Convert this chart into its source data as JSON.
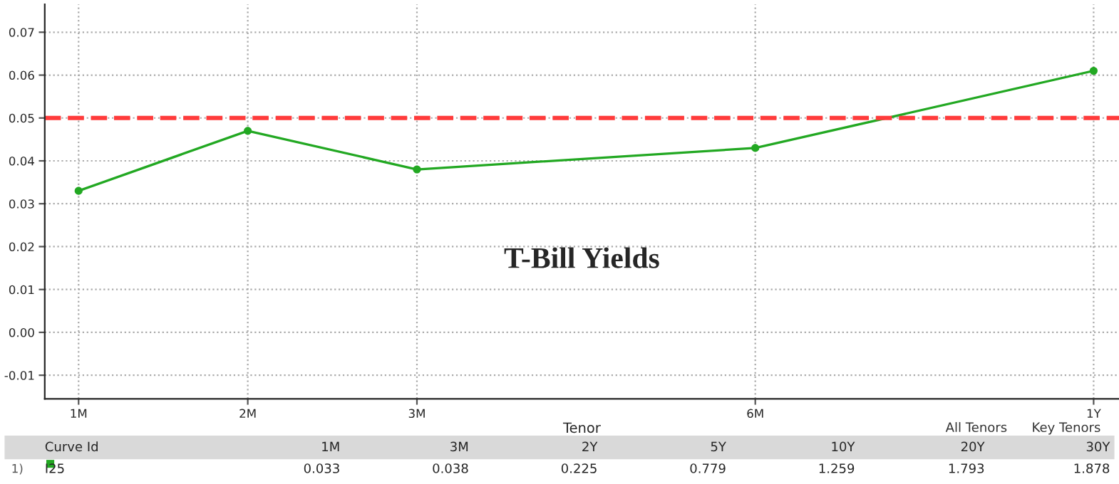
{
  "chart_data": {
    "type": "line",
    "xlabel": "Tenor",
    "categories": [
      "1M",
      "2M",
      "3M",
      null,
      "6M",
      null,
      "1Y"
    ],
    "series": [
      {
        "color": "#22a822",
        "values": [
          0.033,
          0.047,
          0.038,
          null,
          0.043,
          null,
          0.061
        ]
      }
    ],
    "ylim": [
      -0.0155,
      0.0765
    ],
    "yticks": [
      {
        "value": -0.01,
        "label": "-0.01"
      },
      {
        "value": 0,
        "label": "0.00"
      },
      {
        "value": 0.01,
        "label": "0.01"
      },
      {
        "value": 0.02,
        "label": "0.02"
      },
      {
        "value": 0.03,
        "label": "0.03"
      },
      {
        "value": 0.04,
        "label": "0.04"
      },
      {
        "value": 0.05,
        "label": "0.05"
      },
      {
        "value": 0.06,
        "label": "0.06"
      },
      {
        "value": 0.07,
        "label": "0.07"
      }
    ],
    "ref_lines": [
      {
        "axis": "y",
        "value": 0.05,
        "color": "#ff3b3b",
        "line_style": "dashed"
      }
    ],
    "grid": true,
    "marker": "circle",
    "line_style": "solid",
    "legend": false,
    "annotations": [
      "T-Bill Yields",
      "All Tenors",
      "Key Tenors",
      "Curve Id",
      "1M",
      "3M",
      "2Y",
      "5Y",
      "10Y",
      "20Y",
      "30Y",
      "1)",
      "I25",
      "0.033",
      "0.038",
      "0.225",
      "0.779",
      "1.259",
      "1.793",
      "1.878"
    ]
  }
}
